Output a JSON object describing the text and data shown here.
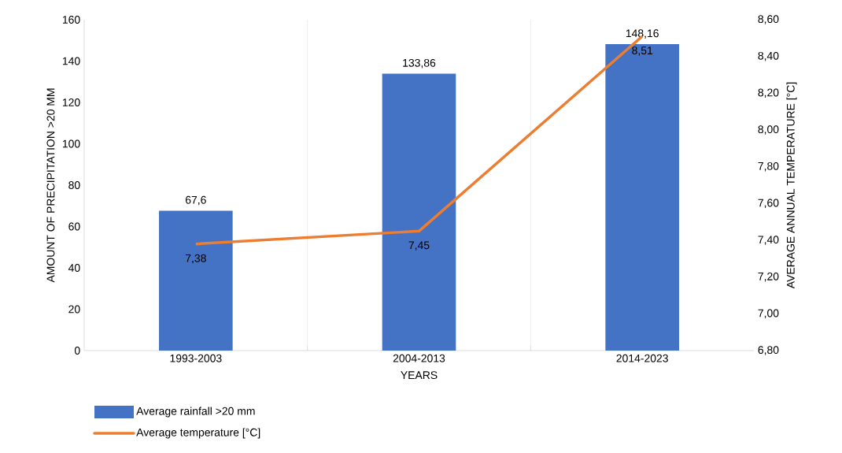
{
  "chart_data": {
    "type": "bar",
    "categories": [
      "1993-2003",
      "2004-2013",
      "2014-2023"
    ],
    "xlabel": "YEARS",
    "ylabel": "AMOUNT OF PRECIPITATION >20 MM",
    "y2label": "AVERAGE ANNUAL TEMPERATURE [°C]",
    "series": [
      {
        "name": "Average rainfall >20 mm",
        "color": "#4472c4",
        "values": [
          67.6,
          133.86,
          148.16
        ],
        "value_labels": [
          "67,6",
          "133,86",
          "148,16"
        ]
      },
      {
        "name": "Average temperature [°C]",
        "type": "line",
        "axis": "y2",
        "color": "#ed7d31",
        "values": [
          7.38,
          7.45,
          8.51
        ],
        "value_labels": [
          "7,38",
          "7,45",
          "8,51"
        ]
      }
    ],
    "ylim": [
      0,
      160
    ],
    "yticks": [
      0,
      20,
      40,
      60,
      80,
      100,
      120,
      140,
      160
    ],
    "y2lim": [
      6.8,
      8.6
    ],
    "y2ticks": [
      {
        "value": 6.8,
        "label": "6,80"
      },
      {
        "value": 7.0,
        "label": "7,00"
      },
      {
        "value": 7.2,
        "label": "7,20"
      },
      {
        "value": 7.4,
        "label": "7,40"
      },
      {
        "value": 7.6,
        "label": "7,60"
      },
      {
        "value": 7.8,
        "label": "7,80"
      },
      {
        "value": 8.0,
        "label": "8,00"
      },
      {
        "value": 8.2,
        "label": "8,20"
      },
      {
        "value": 8.4,
        "label": "8,40"
      },
      {
        "value": 8.6,
        "label": "8,60"
      }
    ],
    "grid": "x",
    "legend": "bottom left"
  }
}
